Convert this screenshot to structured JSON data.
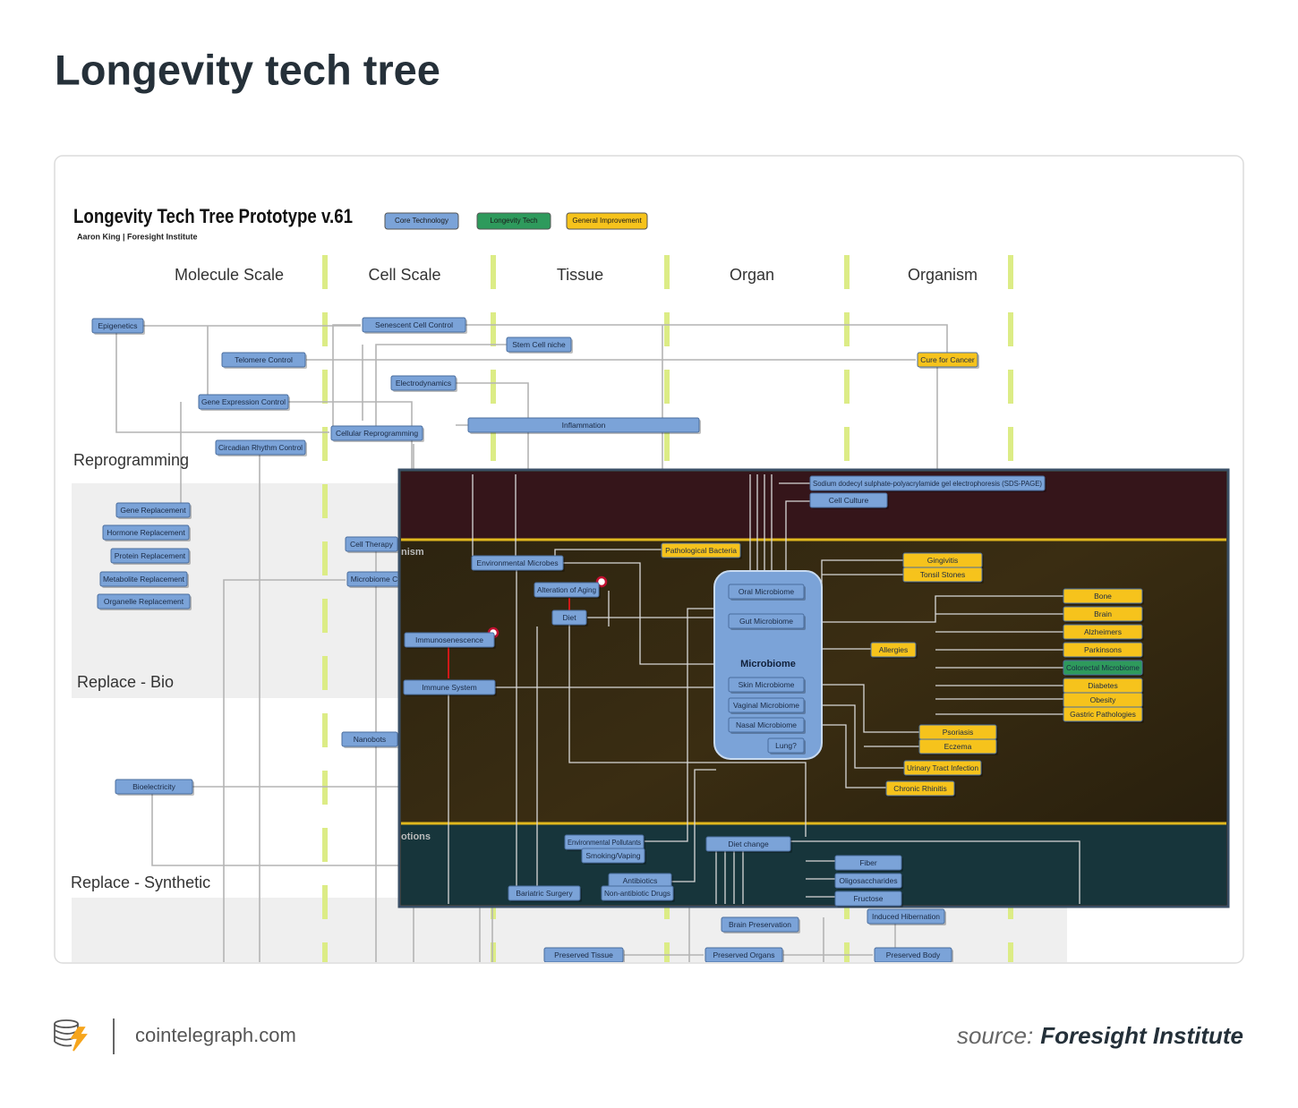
{
  "header": {
    "title": "Longevity tech tree"
  },
  "diagram": {
    "title": "Longevity Tech Tree Prototype v.61",
    "subtitle": "Aaron King | Foresight Institute",
    "legend": [
      {
        "label": "Core Technology",
        "color": "#7ba3d8"
      },
      {
        "label": "Longevity Tech",
        "color": "#2e9a5c"
      },
      {
        "label": "General Improvement",
        "color": "#f6c31c"
      }
    ],
    "columns": [
      "Molecule Scale",
      "Cell Scale",
      "Tissue",
      "Organ",
      "Organism"
    ],
    "rows": [
      "Reprogramming",
      "Replace - Bio",
      "Replace - Synthetic"
    ],
    "nodes": [
      {
        "label": "Epigenetics",
        "color": "#7ba3d8"
      },
      {
        "label": "Senescent Cell Control",
        "color": "#7ba3d8"
      },
      {
        "label": "Stem Cell niche",
        "color": "#7ba3d8"
      },
      {
        "label": "Telomere Control",
        "color": "#7ba3d8"
      },
      {
        "label": "Cure for Cancer",
        "color": "#f6c31c"
      },
      {
        "label": "Electrodynamics",
        "color": "#7ba3d8"
      },
      {
        "label": "Gene Expression Control",
        "color": "#7ba3d8"
      },
      {
        "label": "Inflammation",
        "color": "#7ba3d8"
      },
      {
        "label": "Cellular Reprogramming",
        "color": "#7ba3d8"
      },
      {
        "label": "Circadian Rhythm Control",
        "color": "#7ba3d8"
      },
      {
        "label": "Gene Replacement",
        "color": "#7ba3d8"
      },
      {
        "label": "Hormone Replacement",
        "color": "#7ba3d8"
      },
      {
        "label": "Protein Replacement",
        "color": "#7ba3d8"
      },
      {
        "label": "Metabolite Replacement",
        "color": "#7ba3d8"
      },
      {
        "label": "Organelle Replacement",
        "color": "#7ba3d8"
      },
      {
        "label": "Cell Therapy",
        "color": "#7ba3d8"
      },
      {
        "label": "Microbiome C",
        "color": "#7ba3d8"
      },
      {
        "label": "Nanobots",
        "color": "#7ba3d8"
      },
      {
        "label": "Bioelectricity",
        "color": "#7ba3d8"
      },
      {
        "label": "Brain Preservation",
        "color": "#7ba3d8"
      },
      {
        "label": "Induced Hibernation",
        "color": "#7ba3d8"
      },
      {
        "label": "Preserved Tissue",
        "color": "#7ba3d8"
      },
      {
        "label": "Preserved Organs",
        "color": "#7ba3d8"
      },
      {
        "label": "Preserved Body",
        "color": "#7ba3d8"
      }
    ],
    "inset": {
      "sections": [
        "nism",
        "otions"
      ],
      "hub": "Microbiome",
      "nodes": [
        {
          "label": "Sodium dodecyl sulphate-polyacrylamide gel electrophoresis (SDS-PAGE)",
          "color": "#7ba3d8"
        },
        {
          "label": "Cell Culture",
          "color": "#7ba3d8"
        },
        {
          "label": "Pathological Bacteria",
          "color": "#f6c31c"
        },
        {
          "label": "Environmental Microbes",
          "color": "#7ba3d8"
        },
        {
          "label": "Alteration of Aging",
          "color": "#7ba3d8"
        },
        {
          "label": "Diet",
          "color": "#7ba3d8"
        },
        {
          "label": "Immunosenescence",
          "color": "#7ba3d8"
        },
        {
          "label": "Immune System",
          "color": "#7ba3d8"
        },
        {
          "label": "Oral Microbiome",
          "color": "#7ba3d8"
        },
        {
          "label": "Gut Microbiome",
          "color": "#7ba3d8"
        },
        {
          "label": "Skin Microbiome",
          "color": "#7ba3d8"
        },
        {
          "label": "Vaginal Microbiome",
          "color": "#7ba3d8"
        },
        {
          "label": "Nasal Microbiome",
          "color": "#7ba3d8"
        },
        {
          "label": "Lung?",
          "color": "#7ba3d8"
        },
        {
          "label": "Gingivitis",
          "color": "#f6c31c"
        },
        {
          "label": "Tonsil Stones",
          "color": "#f6c31c"
        },
        {
          "label": "Allergies",
          "color": "#f6c31c"
        },
        {
          "label": "Bone",
          "color": "#f6c31c"
        },
        {
          "label": "Brain",
          "color": "#f6c31c"
        },
        {
          "label": "Alzheimers",
          "color": "#f6c31c"
        },
        {
          "label": "Parkinsons",
          "color": "#f6c31c"
        },
        {
          "label": "Colorectal Microbiome",
          "color": "#2e9a5c"
        },
        {
          "label": "Diabetes",
          "color": "#f6c31c"
        },
        {
          "label": "Obesity",
          "color": "#f6c31c"
        },
        {
          "label": "Gastric Pathologies",
          "color": "#f6c31c"
        },
        {
          "label": "Psoriasis",
          "color": "#f6c31c"
        },
        {
          "label": "Eczema",
          "color": "#f6c31c"
        },
        {
          "label": "Urinary Tract Infection",
          "color": "#f6c31c"
        },
        {
          "label": "Chronic Rhinitis",
          "color": "#f6c31c"
        },
        {
          "label": "Environmental Pollutants",
          "color": "#7ba3d8"
        },
        {
          "label": "Smoking/Vaping",
          "color": "#7ba3d8"
        },
        {
          "label": "Diet change",
          "color": "#7ba3d8"
        },
        {
          "label": "Fiber",
          "color": "#7ba3d8"
        },
        {
          "label": "Oligosaccharides",
          "color": "#7ba3d8"
        },
        {
          "label": "Fructose",
          "color": "#7ba3d8"
        },
        {
          "label": "Antibiotics",
          "color": "#7ba3d8"
        },
        {
          "label": "Non-antibiotic Drugs",
          "color": "#7ba3d8"
        },
        {
          "label": "Bariatric Surgery",
          "color": "#7ba3d8"
        }
      ]
    }
  },
  "footer": {
    "site": "cointelegraph.com",
    "source_prefix": "source:",
    "source": "Foresight Institute"
  }
}
